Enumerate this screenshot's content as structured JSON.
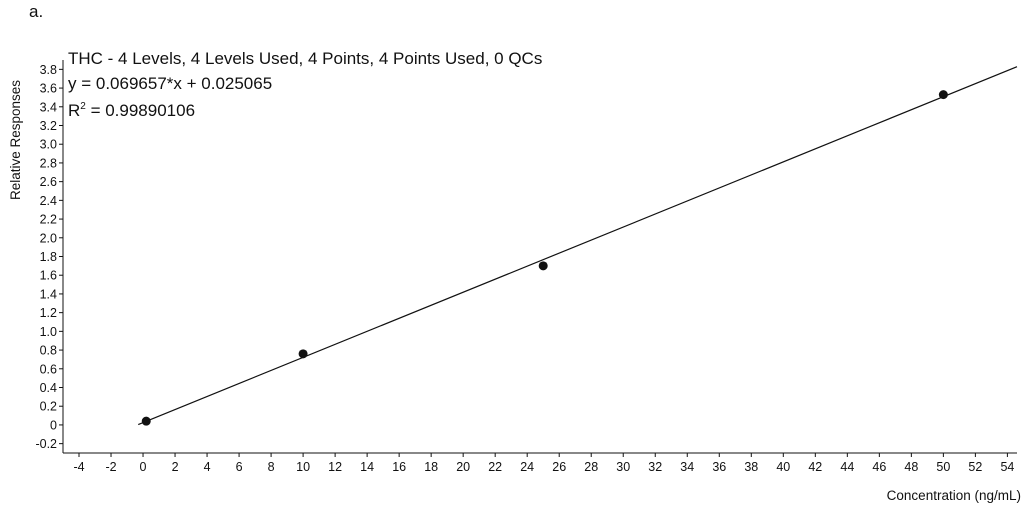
{
  "panel_label": "a.",
  "chart_data": {
    "type": "scatter",
    "title": "THC - 4 Levels, 4 Levels Used, 4 Points, 4 Points Used, 0 QCs",
    "equation": "y = 0.069657*x + 0.025065",
    "r_squared_label": "R",
    "r_squared_sup": "2",
    "r_squared_value": " = 0.99890106",
    "xlabel": "Concentration (ng/mL)",
    "ylabel": "Relative Responses",
    "xlim": [
      -5,
      54.6
    ],
    "ylim": [
      -0.3,
      3.9
    ],
    "x_ticks": [
      -4,
      -2,
      0,
      2,
      4,
      6,
      8,
      10,
      12,
      14,
      16,
      18,
      20,
      22,
      24,
      26,
      28,
      30,
      32,
      34,
      36,
      38,
      40,
      42,
      44,
      46,
      48,
      50,
      52,
      54
    ],
    "y_ticks": [
      -0.2,
      0,
      0.2,
      0.4,
      0.6,
      0.8,
      1.0,
      1.2,
      1.4,
      1.6,
      1.8,
      2.0,
      2.2,
      2.4,
      2.6,
      2.8,
      3.0,
      3.2,
      3.4,
      3.6,
      3.8
    ],
    "y_tick_labels": [
      "-0.2",
      "0",
      "0.2",
      "0.4",
      "0.6",
      "0.8",
      "1.0",
      "1.2",
      "1.4",
      "1.6",
      "1.8",
      "2.0",
      "2.2",
      "2.4",
      "2.6",
      "2.8",
      "3.0",
      "3.2",
      "3.4",
      "3.6",
      "3.8"
    ],
    "series": [
      {
        "x": [
          0.2,
          10,
          25,
          50
        ],
        "y": [
          0.04,
          0.76,
          1.7,
          3.53
        ]
      }
    ],
    "fit_line": {
      "slope": 0.069657,
      "intercept": 0.025065,
      "x_range": [
        -0.3,
        54.6
      ]
    },
    "grid": false
  }
}
